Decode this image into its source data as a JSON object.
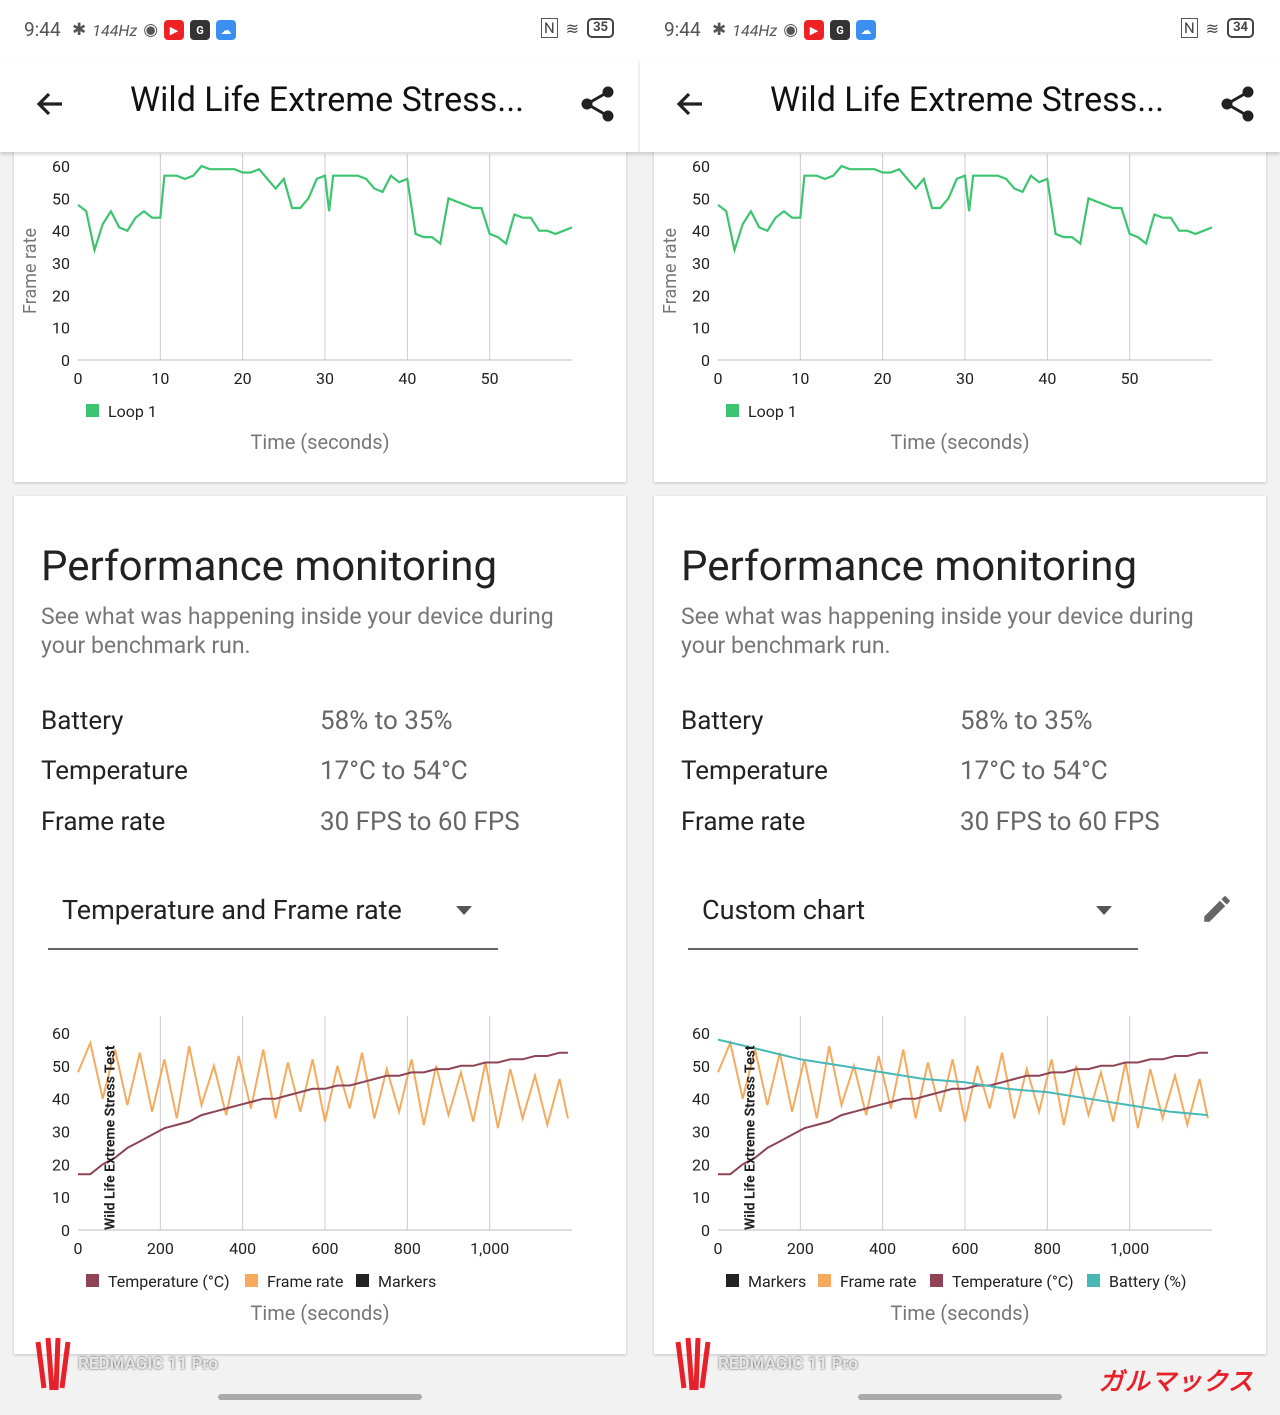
{
  "status": {
    "time": "9:44",
    "refresh": "144Hz",
    "battery_left": "35",
    "battery_right": "34"
  },
  "appbar": {
    "title": "Wild Life Extreme Stress..."
  },
  "fps_chart": {
    "ylabel": "Frame rate",
    "xlabel": "Time (seconds)",
    "legend": "Loop 1",
    "yticks": [
      "0",
      "10",
      "20",
      "30",
      "40",
      "50",
      "60"
    ],
    "xticks": [
      "0",
      "10",
      "20",
      "30",
      "40",
      "50"
    ]
  },
  "monitoring": {
    "title": "Performance monitoring",
    "description": "See what was happening inside your device during your benchmark run.",
    "rows": [
      {
        "label": "Battery",
        "value": "58% to 35%"
      },
      {
        "label": "Temperature",
        "value": "17°C to 54°C"
      },
      {
        "label": "Frame rate",
        "value": "30 FPS to 60 FPS"
      }
    ]
  },
  "left_panel": {
    "dropdown": "Temperature and Frame rate",
    "legend": [
      "Temperature (°C)",
      "Frame rate",
      "Markers"
    ]
  },
  "right_panel": {
    "dropdown": "Custom chart",
    "legend": [
      "Markers",
      "Frame rate",
      "Temperature (°C)",
      "Battery (%)"
    ]
  },
  "perf_chart": {
    "marker_label": "Wild Life Extreme Stress Test",
    "xlabel": "Time (seconds)",
    "yticks": [
      "0",
      "10",
      "20",
      "30",
      "40",
      "50",
      "60"
    ],
    "xticks": [
      "0",
      "200",
      "400",
      "600",
      "800",
      "1,000"
    ]
  },
  "watermark": "REDMAGIC 11 Pro",
  "brand": "ガルマックス",
  "colors": {
    "fps_green": "#3cc46f",
    "temperature": "#8e4455",
    "frame_rate": "#f5aa5e",
    "markers": "#222222",
    "battery": "#47b8b8"
  },
  "chart_data": [
    {
      "type": "line",
      "title": "",
      "xlabel": "Time (seconds)",
      "ylabel": "Frame rate",
      "xlim": [
        0,
        60
      ],
      "ylim": [
        0,
        60
      ],
      "series": [
        {
          "name": "Loop 1",
          "x": [
            0,
            1,
            2,
            3,
            4,
            5,
            6,
            7,
            8,
            9,
            10,
            10.5,
            11,
            12,
            13,
            14,
            15,
            16,
            17,
            18,
            19,
            20,
            21,
            22,
            23,
            24,
            25,
            26,
            27,
            28,
            29,
            30,
            30.5,
            31,
            32,
            33,
            34,
            35,
            36,
            37,
            38,
            39,
            40,
            41,
            42,
            43,
            44,
            45,
            46,
            47,
            48,
            49,
            50,
            51,
            52,
            53,
            54,
            55,
            56,
            57,
            58,
            59,
            60
          ],
          "y": [
            48,
            46,
            34,
            42,
            46,
            41,
            40,
            44,
            46,
            44,
            44,
            57,
            57,
            57,
            56,
            57,
            60,
            59,
            59,
            59,
            59,
            58,
            58,
            59,
            56,
            53,
            56,
            47,
            47,
            50,
            56,
            57,
            46,
            57,
            57,
            57,
            57,
            56,
            53,
            52,
            57,
            55,
            56,
            39,
            38,
            38,
            36,
            50,
            49,
            48,
            47,
            47,
            39,
            38,
            36,
            45,
            44,
            44,
            40,
            40,
            39,
            40,
            41
          ]
        }
      ]
    },
    {
      "type": "line",
      "title": "",
      "xlabel": "Time (seconds)",
      "xlim": [
        0,
        1200
      ],
      "ylim": [
        0,
        60
      ],
      "series": [
        {
          "name": "Temperature (°C)",
          "x": [
            0,
            30,
            60,
            90,
            120,
            150,
            180,
            210,
            240,
            270,
            300,
            330,
            360,
            390,
            420,
            450,
            480,
            510,
            540,
            570,
            600,
            630,
            660,
            690,
            720,
            750,
            780,
            810,
            840,
            870,
            900,
            930,
            960,
            990,
            1020,
            1050,
            1080,
            1110,
            1140,
            1170,
            1190
          ],
          "y": [
            17,
            17,
            20,
            22,
            25,
            27,
            29,
            31,
            32,
            33,
            35,
            36,
            37,
            38,
            39,
            40,
            40,
            41,
            42,
            43,
            43,
            44,
            44,
            45,
            46,
            47,
            47,
            48,
            48,
            49,
            49,
            50,
            50,
            51,
            51,
            52,
            52,
            53,
            53,
            54,
            54
          ]
        },
        {
          "name": "Frame rate",
          "x": [
            0,
            30,
            60,
            90,
            120,
            150,
            180,
            210,
            240,
            270,
            300,
            330,
            360,
            390,
            420,
            450,
            480,
            510,
            540,
            570,
            600,
            630,
            660,
            690,
            720,
            750,
            780,
            810,
            840,
            870,
            900,
            930,
            960,
            990,
            1020,
            1050,
            1080,
            1110,
            1140,
            1170,
            1190
          ],
          "y": [
            48,
            57,
            40,
            55,
            38,
            54,
            36,
            52,
            34,
            56,
            38,
            50,
            35,
            53,
            37,
            55,
            34,
            51,
            36,
            52,
            33,
            50,
            37,
            54,
            34,
            49,
            36,
            52,
            32,
            50,
            35,
            48,
            33,
            51,
            31,
            49,
            34,
            47,
            32,
            46,
            34
          ]
        },
        {
          "name": "Markers",
          "x": [
            45
          ],
          "y": [
            60
          ]
        },
        {
          "name": "Battery (%)",
          "x": [
            0,
            100,
            200,
            300,
            400,
            500,
            600,
            700,
            800,
            900,
            1000,
            1100,
            1190
          ],
          "y": [
            58,
            55,
            52,
            50,
            48,
            46,
            45,
            43,
            42,
            40,
            38,
            36,
            35
          ]
        }
      ]
    }
  ]
}
